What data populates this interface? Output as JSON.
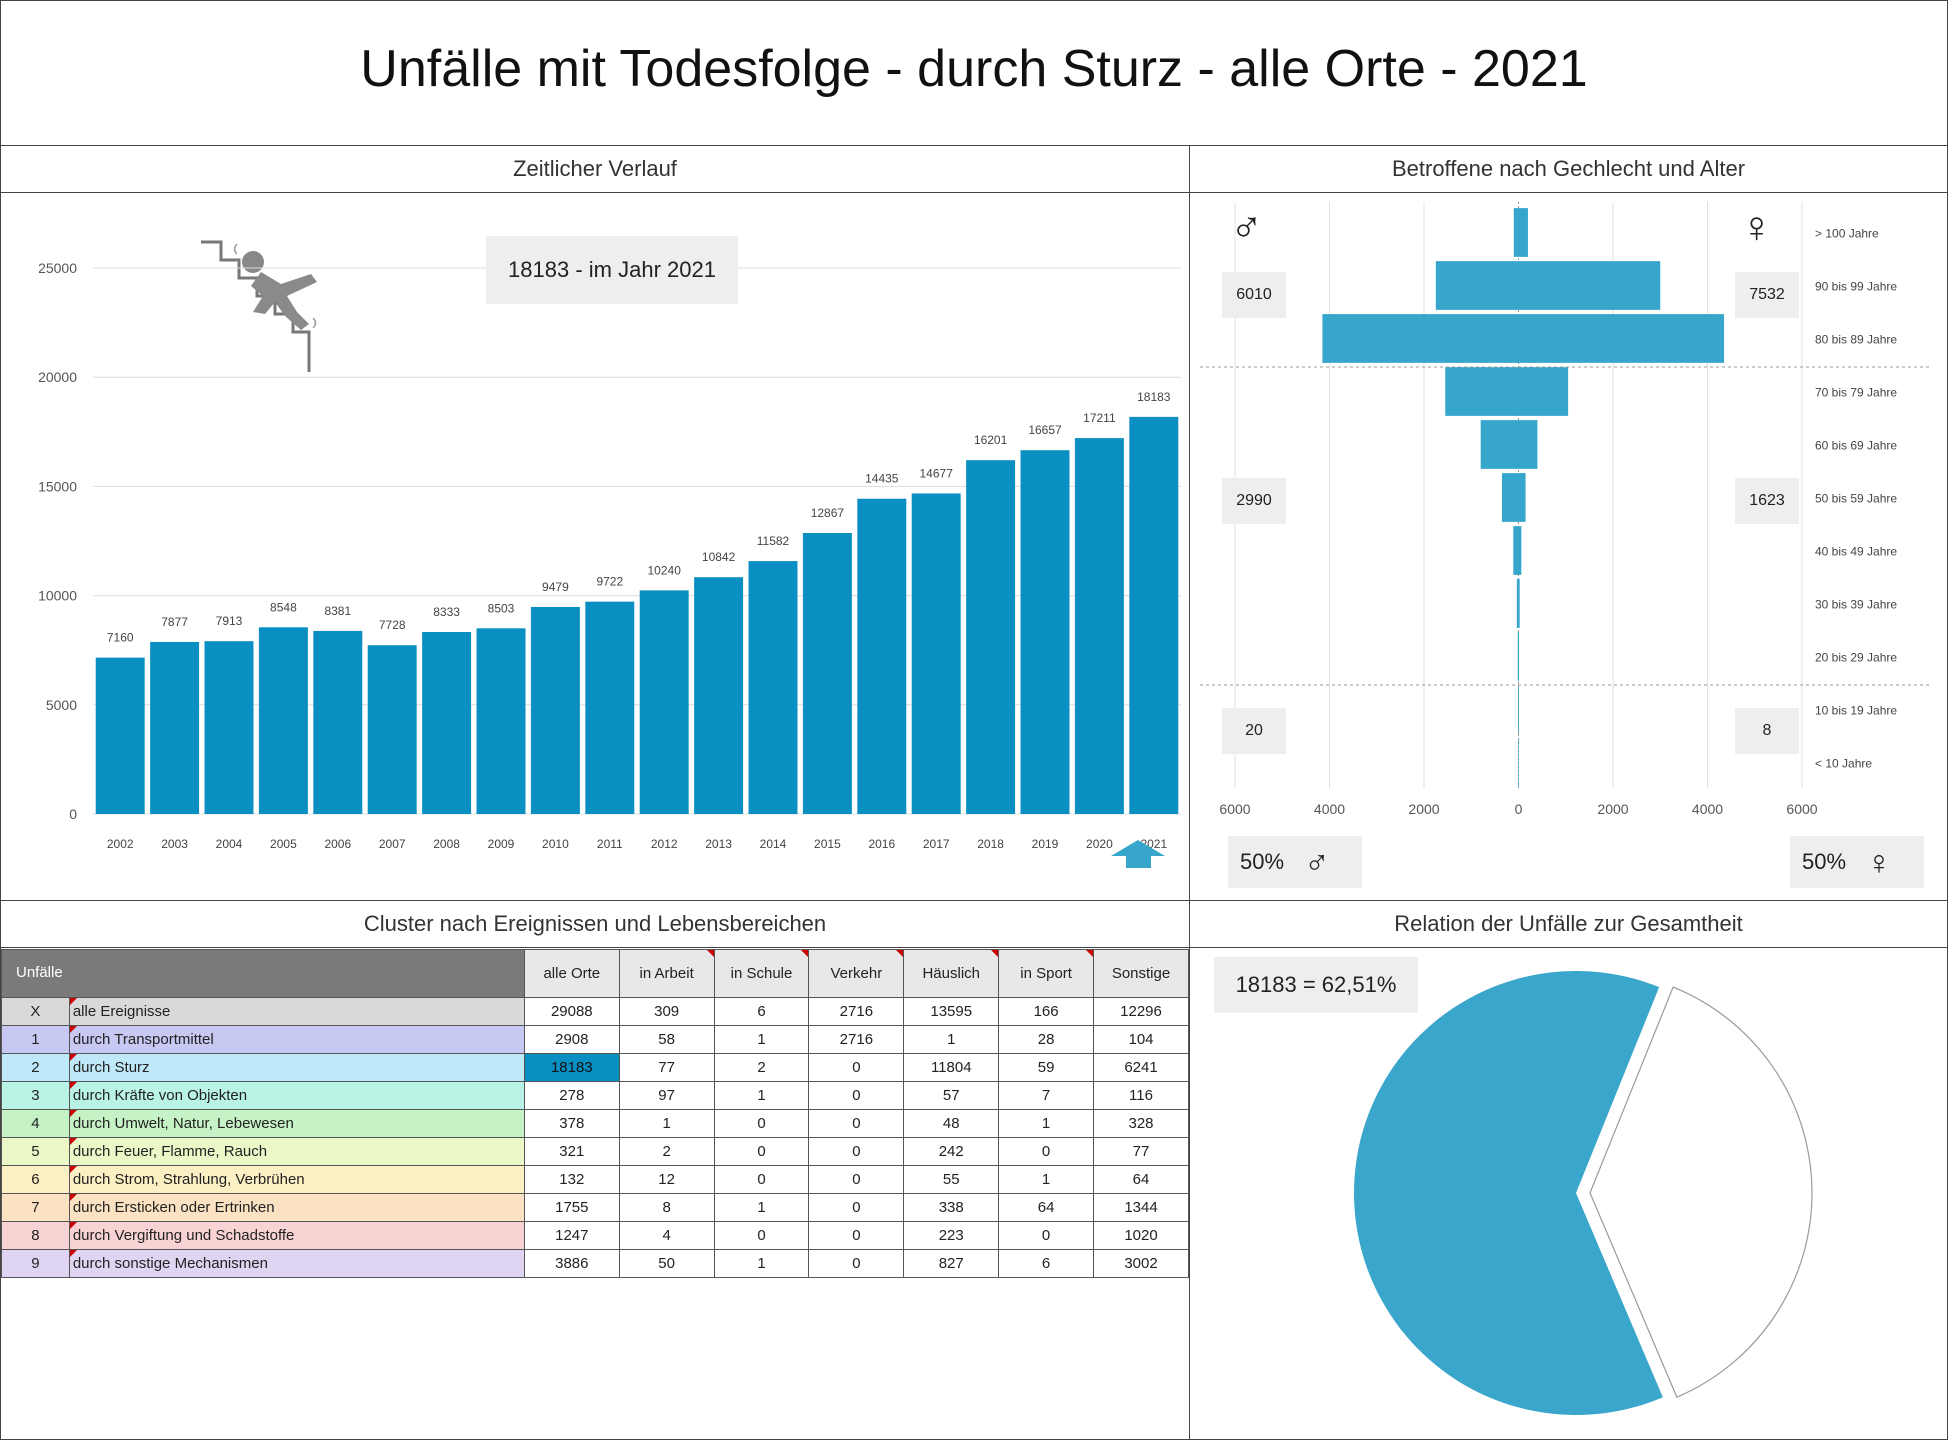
{
  "title": "Unfälle mit Todesfolge - durch Sturz - alle Orte - 2021",
  "panels": {
    "zeit": "Zeitlicher Verlauf",
    "pyramid": "Betroffene nach Gechlecht und Alter",
    "cluster": "Cluster nach Ereignissen und Lebensbereichen",
    "relation": "Relation der Unfälle zur Gesamtheit"
  },
  "zeit_callout": "18183 - im Jahr 2021",
  "pyramid_callouts": {
    "male": [
      "6010",
      "2990",
      "20"
    ],
    "female": [
      "7532",
      "1623",
      "8"
    ]
  },
  "gender_share": {
    "male": "50%",
    "female": "50%"
  },
  "relation_callout": "18183 =  62,51%",
  "symbols": {
    "male": "♂",
    "female": "♀"
  },
  "colors": {
    "bar": "#0a8fc2",
    "pyramid": "#36a6cc",
    "pie": "#3aa6cc",
    "highlight": "#0a8fc2"
  },
  "chart_data": [
    {
      "type": "bar",
      "categories": [
        "2002",
        "2003",
        "2004",
        "2005",
        "2006",
        "2007",
        "2008",
        "2009",
        "2010",
        "2011",
        "2012",
        "2013",
        "2014",
        "2015",
        "2016",
        "2017",
        "2018",
        "2019",
        "2020",
        "2021"
      ],
      "values": [
        7160,
        7877,
        7913,
        8548,
        8381,
        7728,
        8333,
        8503,
        9479,
        9722,
        10240,
        10842,
        11582,
        12867,
        14435,
        14677,
        16201,
        16657,
        17211,
        18183
      ],
      "yticks": [
        "25000",
        "20000",
        "15000",
        "10000",
        "5000",
        "0"
      ],
      "ylim": [
        0,
        25000
      ]
    },
    {
      "type": "bar",
      "orientation": "horizontal-pyramid",
      "categories": [
        "> 100 Jahre",
        "90 bis 99 Jahre",
        "80 bis 89 Jahre",
        "70 bis 79 Jahre",
        "60 bis 69 Jahre",
        "50 bis 59 Jahre",
        "40 bis 49 Jahre",
        "30 bis 39 Jahre",
        "20 bis 29 Jahre",
        "10 bis 19 Jahre",
        "< 10 Jahre"
      ],
      "male": [
        100,
        1750,
        4150,
        1550,
        800,
        350,
        110,
        35,
        15,
        10,
        8
      ],
      "female": [
        200,
        3000,
        4350,
        1050,
        400,
        150,
        60,
        25,
        10,
        8,
        6
      ],
      "xticks": [
        "6000",
        "4000",
        "2000",
        "0",
        "2000",
        "4000",
        "6000"
      ],
      "xlim": [
        -6000,
        6000
      ]
    },
    {
      "type": "pie",
      "values": [
        62.51,
        37.49
      ]
    },
    {
      "type": "table",
      "header": [
        "Unfälle",
        "alle Orte",
        "in Arbeit",
        "in Schule",
        "Verkehr",
        "Häuslich",
        "in Sport",
        "Sonstige"
      ],
      "rows": [
        {
          "code": "X",
          "label": "alle Ereignisse",
          "color": "#d9d9d9",
          "values": [
            "29088",
            "309",
            "6",
            "2716",
            "13595",
            "166",
            "12296"
          ]
        },
        {
          "code": "1",
          "label": "durch Transportmittel",
          "color": "#c7c9f3",
          "values": [
            "2908",
            "58",
            "1",
            "2716",
            "1",
            "28",
            "104"
          ]
        },
        {
          "code": "2",
          "label": "durch Sturz",
          "color": "#bfe8f8",
          "values": [
            "18183",
            "77",
            "2",
            "0",
            "11804",
            "59",
            "6241"
          ]
        },
        {
          "code": "3",
          "label": "durch Kräfte von Objekten",
          "color": "#b8f3e6",
          "values": [
            "278",
            "97",
            "1",
            "0",
            "57",
            "7",
            "116"
          ]
        },
        {
          "code": "4",
          "label": "durch Umwelt, Natur, Lebewesen",
          "color": "#c6f3c6",
          "values": [
            "378",
            "1",
            "0",
            "0",
            "48",
            "1",
            "328"
          ]
        },
        {
          "code": "5",
          "label": "durch Feuer, Flamme, Rauch",
          "color": "#ecf7c8",
          "values": [
            "321",
            "2",
            "0",
            "0",
            "242",
            "0",
            "77"
          ]
        },
        {
          "code": "6",
          "label": "durch Strom, Strahlung, Verbrühen",
          "color": "#fbefc4",
          "values": [
            "132",
            "12",
            "0",
            "0",
            "55",
            "1",
            "64"
          ]
        },
        {
          "code": "7",
          "label": "durch Ersticken oder Ertrinken",
          "color": "#fbe2c2",
          "values": [
            "1755",
            "8",
            "1",
            "0",
            "338",
            "64",
            "1344"
          ]
        },
        {
          "code": "8",
          "label": "durch Vergiftung und Schadstoffe",
          "color": "#f9d3d3",
          "values": [
            "1247",
            "4",
            "0",
            "0",
            "223",
            "0",
            "1020"
          ]
        },
        {
          "code": "9",
          "label": "durch sonstige Mechanismen",
          "color": "#e0d4f3",
          "values": [
            "3886",
            "50",
            "1",
            "0",
            "827",
            "6",
            "3002"
          ]
        }
      ]
    }
  ]
}
